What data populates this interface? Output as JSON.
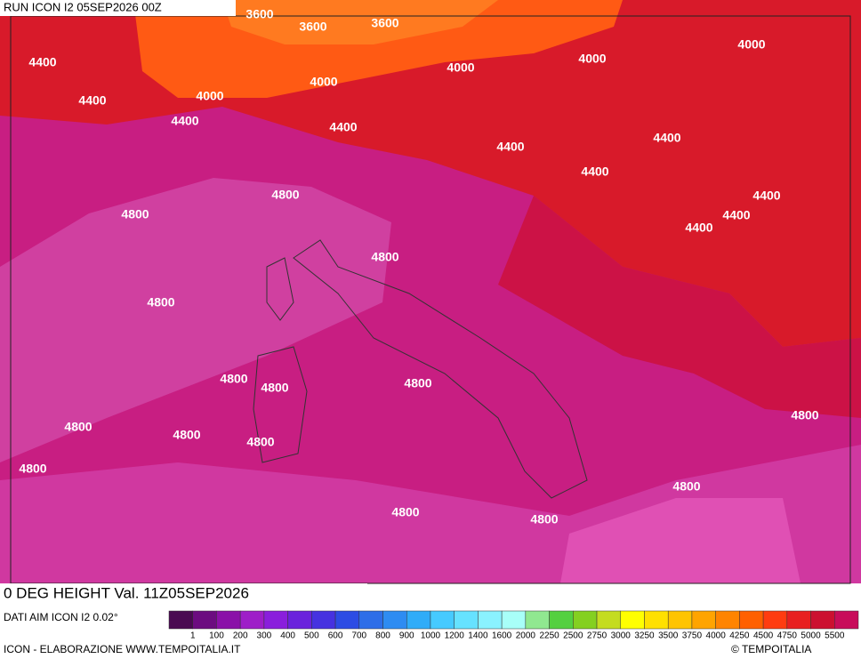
{
  "header": {
    "run": "RUN ICON I2 05SEP2026 00Z"
  },
  "map": {
    "contour_labels": [
      "3600",
      "3600",
      "3600",
      "4400",
      "4400",
      "4400",
      "4400",
      "4400",
      "4400",
      "4400",
      "4400",
      "4400",
      "4400",
      "4000",
      "4000",
      "4000",
      "4000",
      "4000",
      "4800",
      "4800",
      "4800",
      "4800",
      "4800",
      "4800",
      "4800",
      "4800",
      "4800",
      "4800",
      "4800",
      "4800",
      "4800",
      "4800",
      "4800"
    ]
  },
  "footer": {
    "title": "0 DEG HEIGHT Val. 11Z05SEP2026",
    "source": "DATI AIM ICON I2 0.02°",
    "credit": "ICON - ELABORAZIONE WWW.TEMPOITALIA.IT",
    "copyright": "© TEMPOITALIA"
  },
  "legend": {
    "labels": [
      "1",
      "100",
      "200",
      "300",
      "400",
      "500",
      "600",
      "700",
      "800",
      "900",
      "1000",
      "1200",
      "1400",
      "1600",
      "2000",
      "2250",
      "2500",
      "2750",
      "3000",
      "3250",
      "3500",
      "3750",
      "4000",
      "4250",
      "4500",
      "4750",
      "5000",
      "5500"
    ],
    "colors": [
      "#4a0a52",
      "#6c0c80",
      "#8a10a8",
      "#9e1ec8",
      "#8a1edc",
      "#6a22dc",
      "#4632e0",
      "#2c4ce4",
      "#2e6ee8",
      "#2e8cf2",
      "#30acf8",
      "#46caff",
      "#66e2ff",
      "#8af2ff",
      "#a8fff8",
      "#90e890",
      "#54d040",
      "#84d020",
      "#c4dc20",
      "#ffff00",
      "#ffe000",
      "#ffc400",
      "#ffa400",
      "#ff8400",
      "#ff6000",
      "#ff3c10",
      "#e82020",
      "#cc1030",
      "#c80c5a"
    ]
  }
}
